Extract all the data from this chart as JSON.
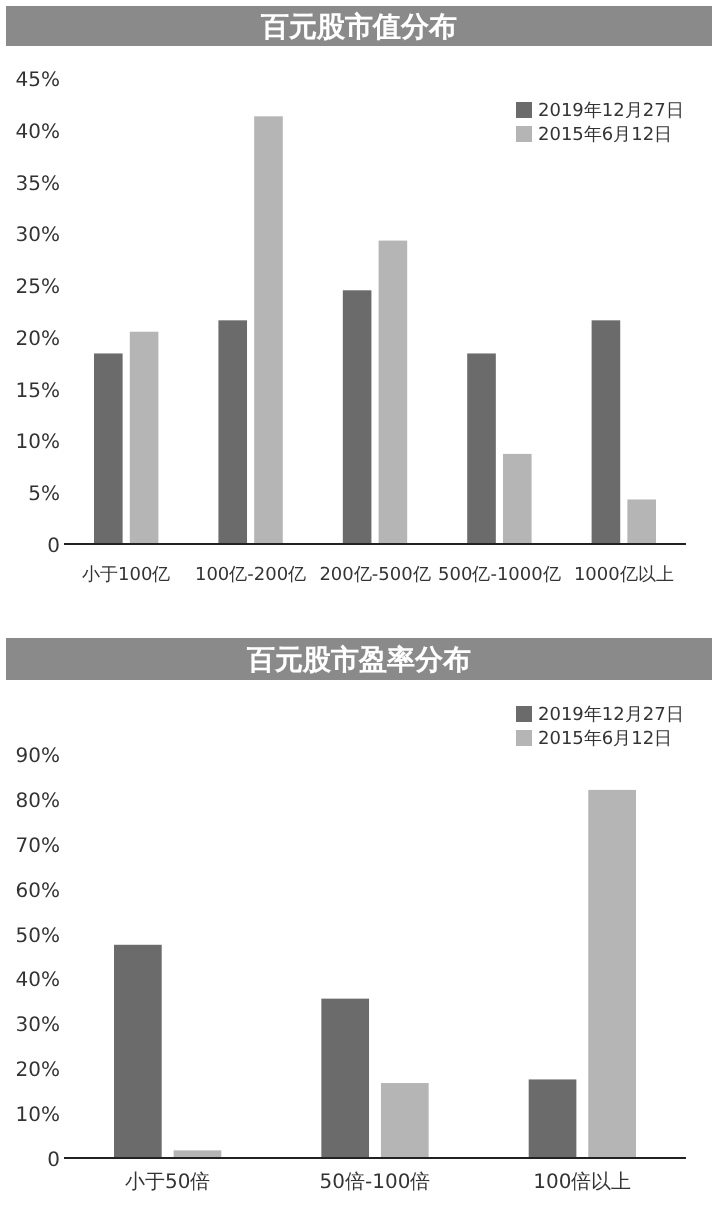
{
  "chart_data": [
    {
      "type": "bar",
      "title": "百元股市值分布",
      "categories": [
        "小于100亿",
        "100亿-200亿",
        "200亿-500亿",
        "500亿-1000亿",
        "1000亿以上"
      ],
      "series": [
        {
          "name": "2019年12月27日",
          "color": "#6b6b6b",
          "values": [
            18.4,
            21.6,
            24.5,
            18.4,
            21.6
          ]
        },
        {
          "name": "2015年6月12日",
          "color": "#b5b5b5",
          "values": [
            20.5,
            41.3,
            29.3,
            8.7,
            4.3
          ]
        }
      ],
      "ylim": [
        0,
        45
      ],
      "yticks": [
        {
          "value": 0,
          "label": "0"
        },
        {
          "value": 5,
          "label": "5%"
        },
        {
          "value": 10,
          "label": "10%"
        },
        {
          "value": 15,
          "label": "15%"
        },
        {
          "value": 20,
          "label": "20%"
        },
        {
          "value": 25,
          "label": "25%"
        },
        {
          "value": 30,
          "label": "30%"
        },
        {
          "value": 35,
          "label": "35%"
        },
        {
          "value": 40,
          "label": "40%"
        },
        {
          "value": 45,
          "label": "45%"
        }
      ],
      "legend": "top right"
    },
    {
      "type": "bar",
      "title": "百元股市盈率分布",
      "categories": [
        "小于50倍",
        "50倍-100倍",
        "100倍以上"
      ],
      "series": [
        {
          "name": "2019年12月27日",
          "color": "#6b6b6b",
          "values": [
            47.5,
            35.5,
            17.5
          ]
        },
        {
          "name": "2015年6月12日",
          "color": "#b5b5b5",
          "values": [
            1.7,
            16.7,
            82
          ]
        }
      ],
      "ylim": [
        0,
        90
      ],
      "yticks": [
        {
          "value": 0,
          "label": "0"
        },
        {
          "value": 10,
          "label": "10%"
        },
        {
          "value": 20,
          "label": "20%"
        },
        {
          "value": 30,
          "label": "30%"
        },
        {
          "value": 40,
          "label": "40%"
        },
        {
          "value": 50,
          "label": "50%"
        },
        {
          "value": 60,
          "label": "60%"
        },
        {
          "value": 70,
          "label": "70%"
        },
        {
          "value": 80,
          "label": "80%"
        },
        {
          "value": 90,
          "label": "90%"
        }
      ],
      "legend": "top right"
    }
  ]
}
